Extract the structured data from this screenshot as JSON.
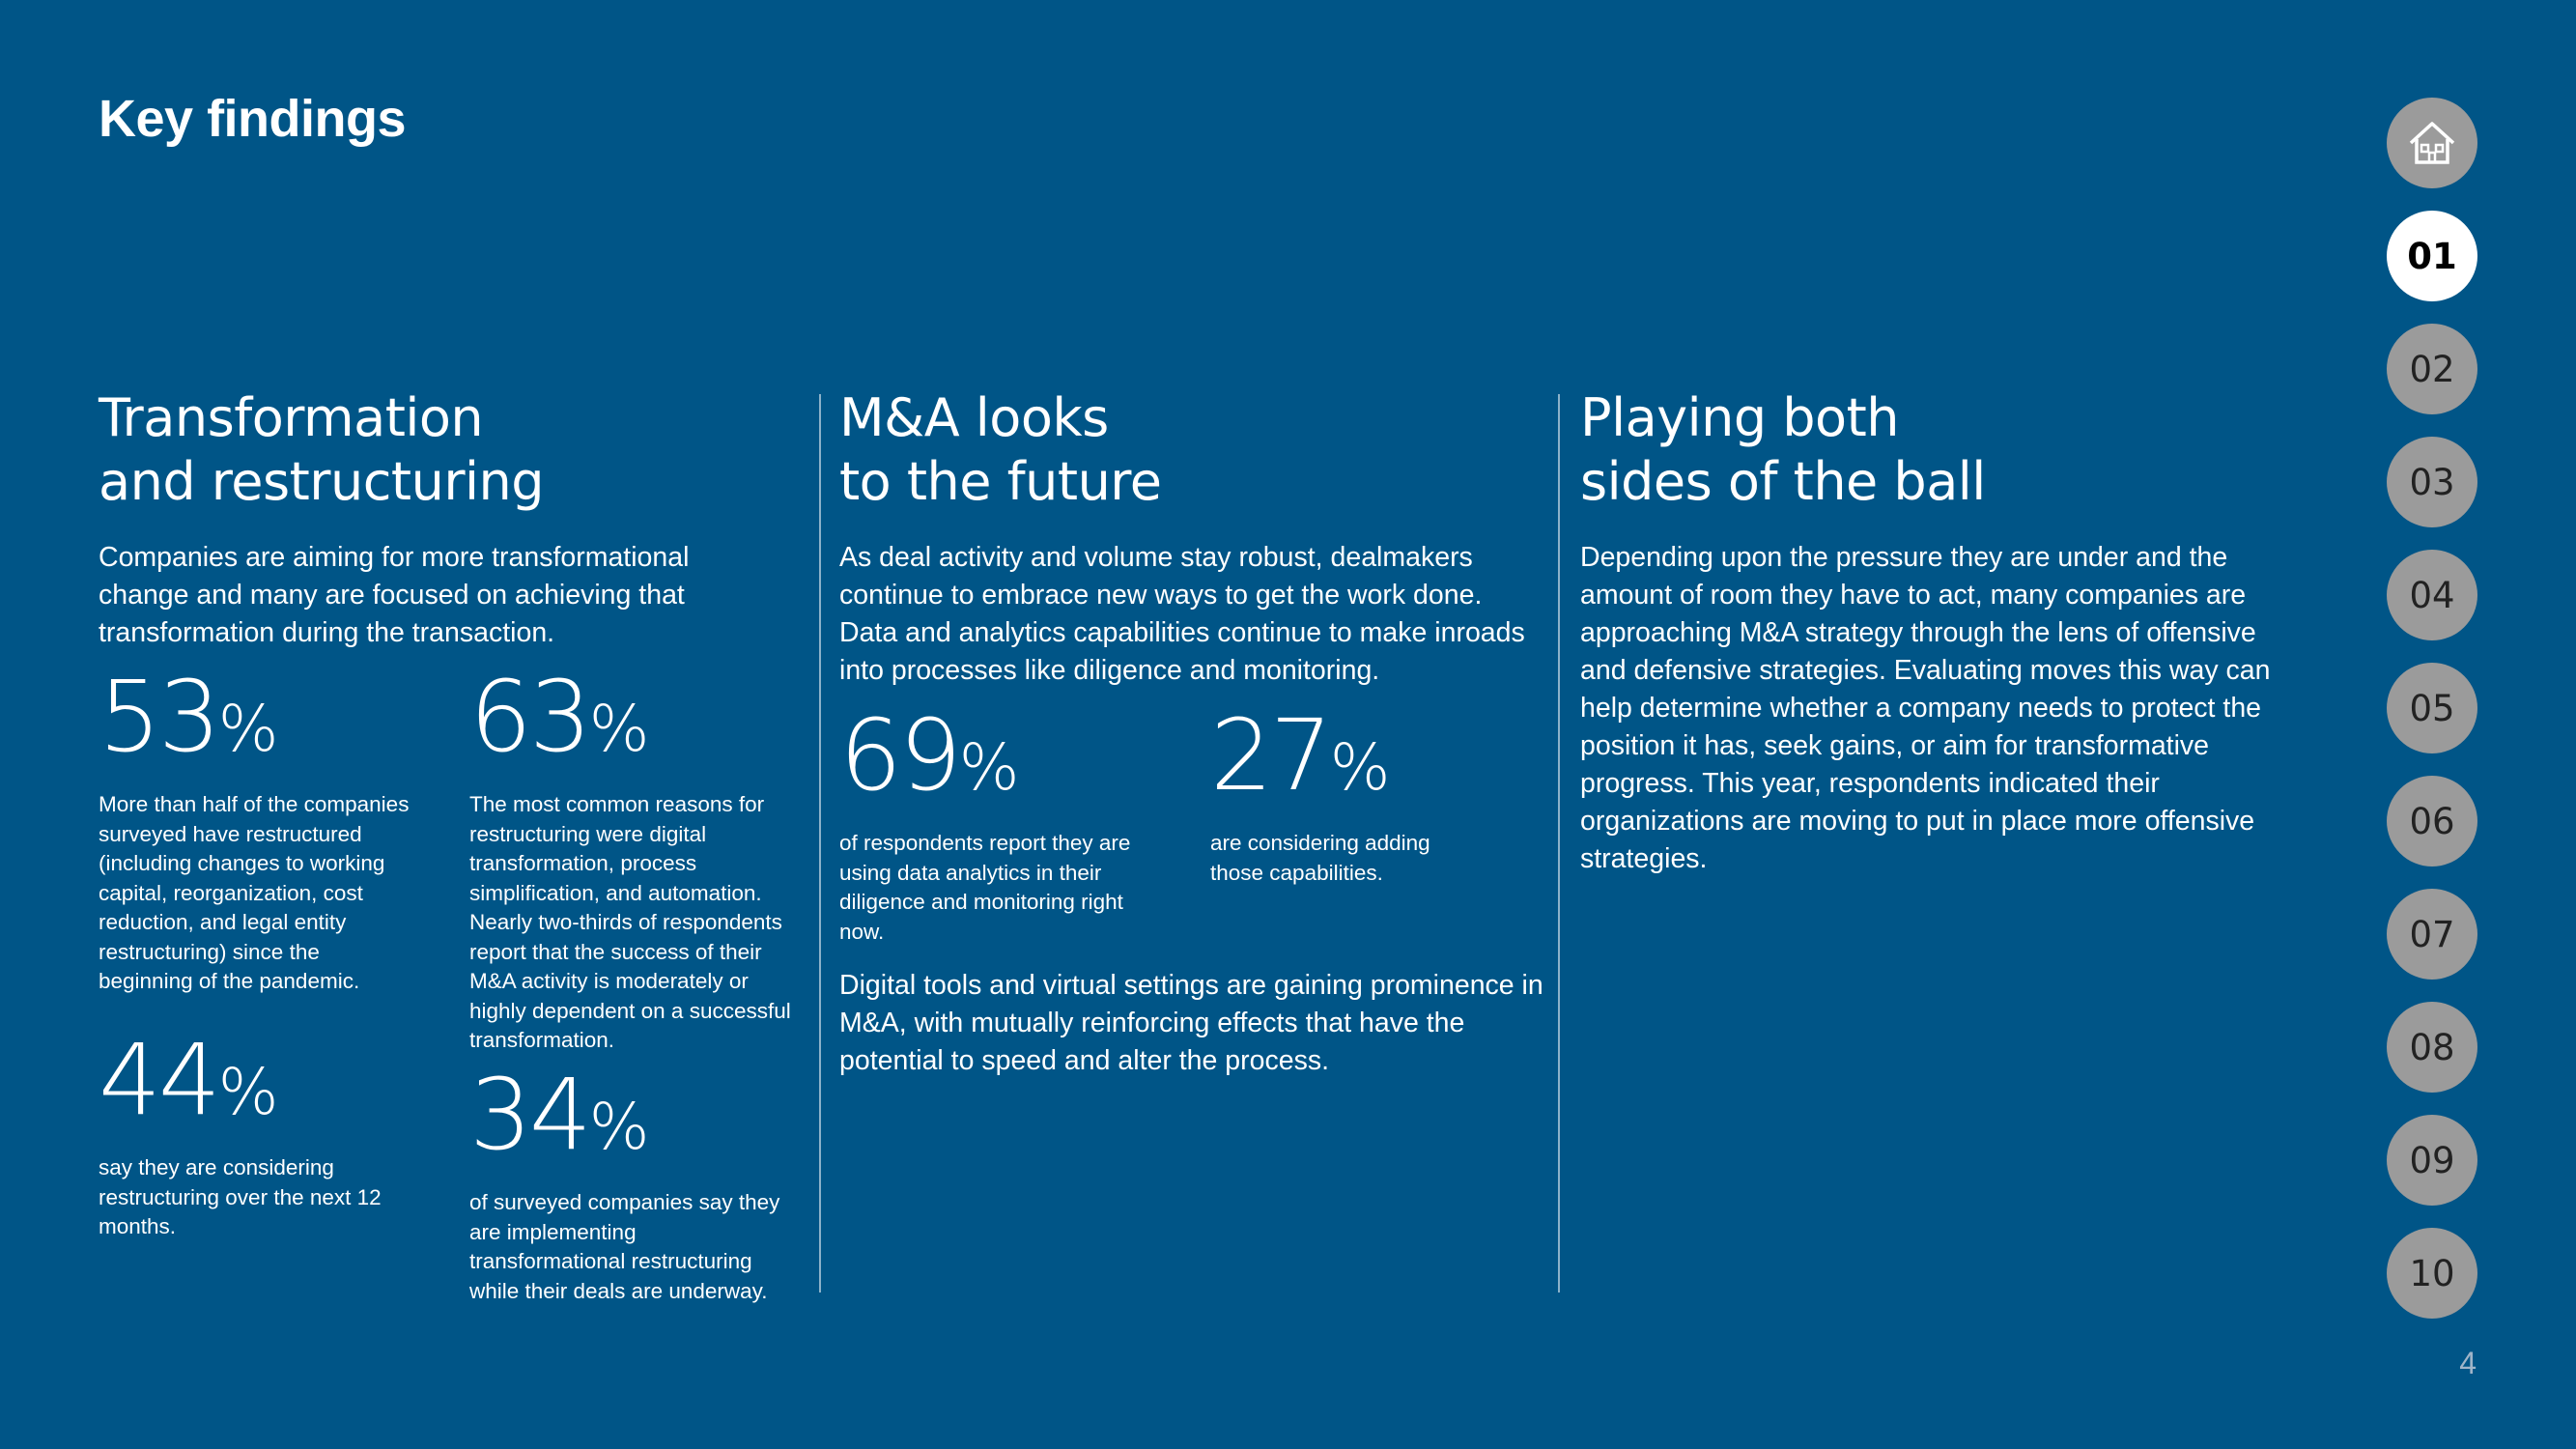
{
  "page": {
    "title": "Key findings",
    "page_number": "4"
  },
  "columns": [
    {
      "heading_line1": "Transformation",
      "heading_line2": "and restructuring",
      "intro": "Companies are aiming for more transformational change and many are focused on achieving that transformation during the transaction.",
      "stats": [
        {
          "value": "53",
          "unit": "%",
          "desc": "More than half of the companies surveyed have restructured (including changes to working capital, reorganization, cost reduction, and legal entity restructuring) since the beginning of the pandemic."
        },
        {
          "value": "63",
          "unit": "%",
          "desc": "The most common reasons for restructuring were digital transformation, process simplification, and automation. Nearly two-thirds of respondents report that the success of their M&A activity is moderately or highly dependent on a successful transformation."
        },
        {
          "value": "44",
          "unit": "%",
          "desc": "say they are considering restructuring over the next 12 months."
        },
        {
          "value": "34",
          "unit": "%",
          "desc": "of surveyed companies say they are implementing transformational restructuring while their deals are underway."
        }
      ]
    },
    {
      "heading_line1": "M&A looks",
      "heading_line2": "to the future",
      "intro": "As deal activity and volume stay robust, dealmakers continue to embrace new ways to get the work done. Data and analytics capabilities continue to make inroads into processes like diligence and monitoring.",
      "stats": [
        {
          "value": "69",
          "unit": "%",
          "desc": "of respondents report they are using data analytics in their diligence and monitoring right now."
        },
        {
          "value": "27",
          "unit": "%",
          "desc": "are considering adding those capabilities."
        }
      ],
      "outro": "Digital tools and virtual settings are gaining prominence in M&A, with mutually reinforcing effects that have the potential to speed and alter the process."
    },
    {
      "heading_line1": "Playing both",
      "heading_line2": "sides of the ball",
      "intro": "Depending upon the pressure they are under and the amount of room they have to act, many companies are approaching M&A strategy through the lens of offensive and defensive strategies. Evaluating moves this way can help determine whether a company needs to protect the position it has, seek gains, or aim for transformative progress. This year, respondents indicated their organizations are moving to put in place more offensive strategies."
    }
  ],
  "nav": {
    "home_icon": "home-icon",
    "items": [
      "01",
      "02",
      "03",
      "04",
      "05",
      "06",
      "07",
      "08",
      "09",
      "10"
    ],
    "active": "01"
  },
  "colors": {
    "background": "#005587",
    "nav_inactive": "#9b9b9b",
    "nav_active": "#ffffff"
  }
}
